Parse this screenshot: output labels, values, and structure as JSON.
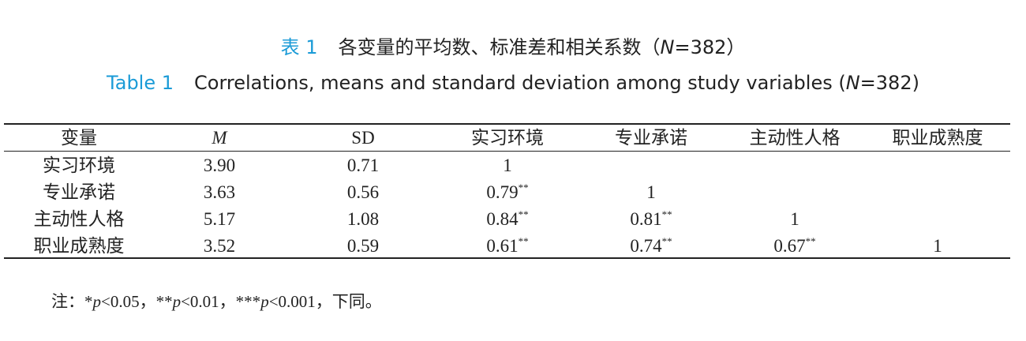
{
  "header": {
    "cn_title": [
      {
        "text": "表 1",
        "accent": true
      },
      {
        "text": "各变量的平均数、标准差和相关系数（"
      },
      {
        "text": "N",
        "italic": true
      },
      {
        "text": "=382）"
      }
    ],
    "en_title": [
      {
        "text": "Table 1",
        "accent": true
      },
      {
        "text": "Correlations, means and standard deviation among study variables ("
      },
      {
        "text": "N",
        "italic": true
      },
      {
        "text": "=382)"
      }
    ]
  },
  "table": {
    "columns": [
      {
        "text": "变量"
      },
      {
        "text": "M",
        "italic": true
      },
      {
        "text": "SD"
      },
      {
        "text": "实习环境"
      },
      {
        "text": "专业承诺"
      },
      {
        "text": "主动性人格"
      },
      {
        "text": "职业成熟度"
      }
    ],
    "rows": [
      [
        {
          "text": "实习环境"
        },
        {
          "text": "3.90"
        },
        {
          "text": "0.71"
        },
        {
          "text": "1"
        }
      ],
      [
        {
          "text": "专业承诺"
        },
        {
          "text": "3.63"
        },
        {
          "text": "0.56"
        },
        {
          "text": "0.79",
          "sig": "**"
        },
        {
          "text": "1"
        }
      ],
      [
        {
          "text": "主动性人格"
        },
        {
          "text": "5.17"
        },
        {
          "text": "1.08"
        },
        {
          "text": "0.84",
          "sig": "**"
        },
        {
          "text": "0.81",
          "sig": "**"
        },
        {
          "text": "1"
        }
      ],
      [
        {
          "text": "职业成熟度"
        },
        {
          "text": "3.52"
        },
        {
          "text": "0.59"
        },
        {
          "text": "0.61",
          "sig": "**"
        },
        {
          "text": "0.74",
          "sig": "**"
        },
        {
          "text": "0.67",
          "sig": "**"
        },
        {
          "text": "1"
        }
      ]
    ]
  },
  "note": [
    {
      "text": "注：*"
    },
    {
      "text": "p",
      "italic": true
    },
    {
      "text": "<0.05，**"
    },
    {
      "text": "p",
      "italic": true
    },
    {
      "text": "<0.01，***"
    },
    {
      "text": "p",
      "italic": true
    },
    {
      "text": "<0.001，下同。"
    }
  ]
}
